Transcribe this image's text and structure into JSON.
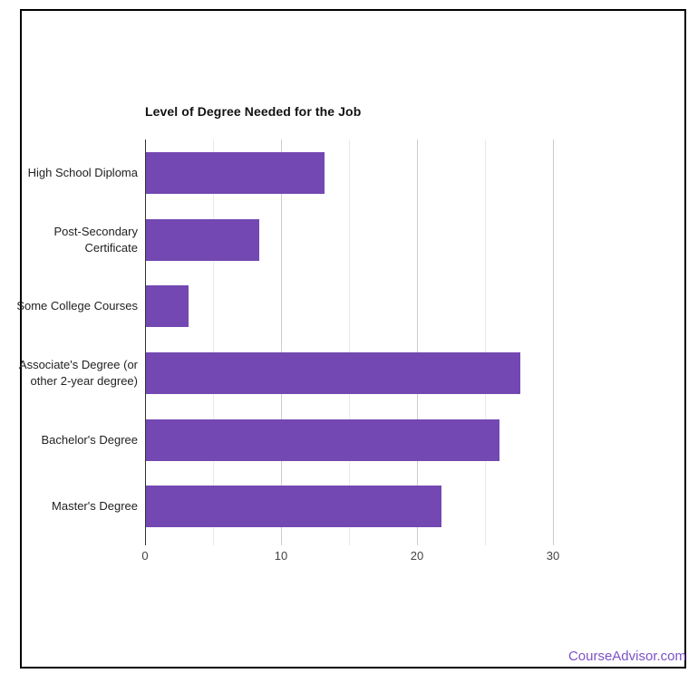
{
  "page": {
    "watermark": "CourseAdvisor.com",
    "colors": {
      "background": "#ffffff",
      "frame_border": "#000000",
      "bar": "#7348b2",
      "watermark": "#7b52c6",
      "gridline_major": "#cccccc",
      "gridline_minor": "#e9e9e9",
      "baseline": "#333333",
      "title_text": "#111111",
      "category_text": "#222222",
      "tick_text": "#444444"
    }
  },
  "chart_data": {
    "type": "bar",
    "orientation": "horizontal",
    "title": "Level of Degree Needed for the Job",
    "categories": [
      "High School Diploma",
      "Post-Secondary Certificate",
      "Some College Courses",
      "Associate's Degree (or other 2-year degree)",
      "Bachelor's Degree",
      "Master's Degree"
    ],
    "values": [
      13.1,
      8.3,
      3.1,
      27.5,
      26.0,
      21.7
    ],
    "xlabel": "",
    "ylabel": "",
    "xlim": [
      0,
      36
    ],
    "x_ticks": [
      0,
      10,
      20,
      30
    ],
    "x_minor_gridlines": [
      5,
      15,
      25
    ],
    "grid": true,
    "legend": "none"
  }
}
